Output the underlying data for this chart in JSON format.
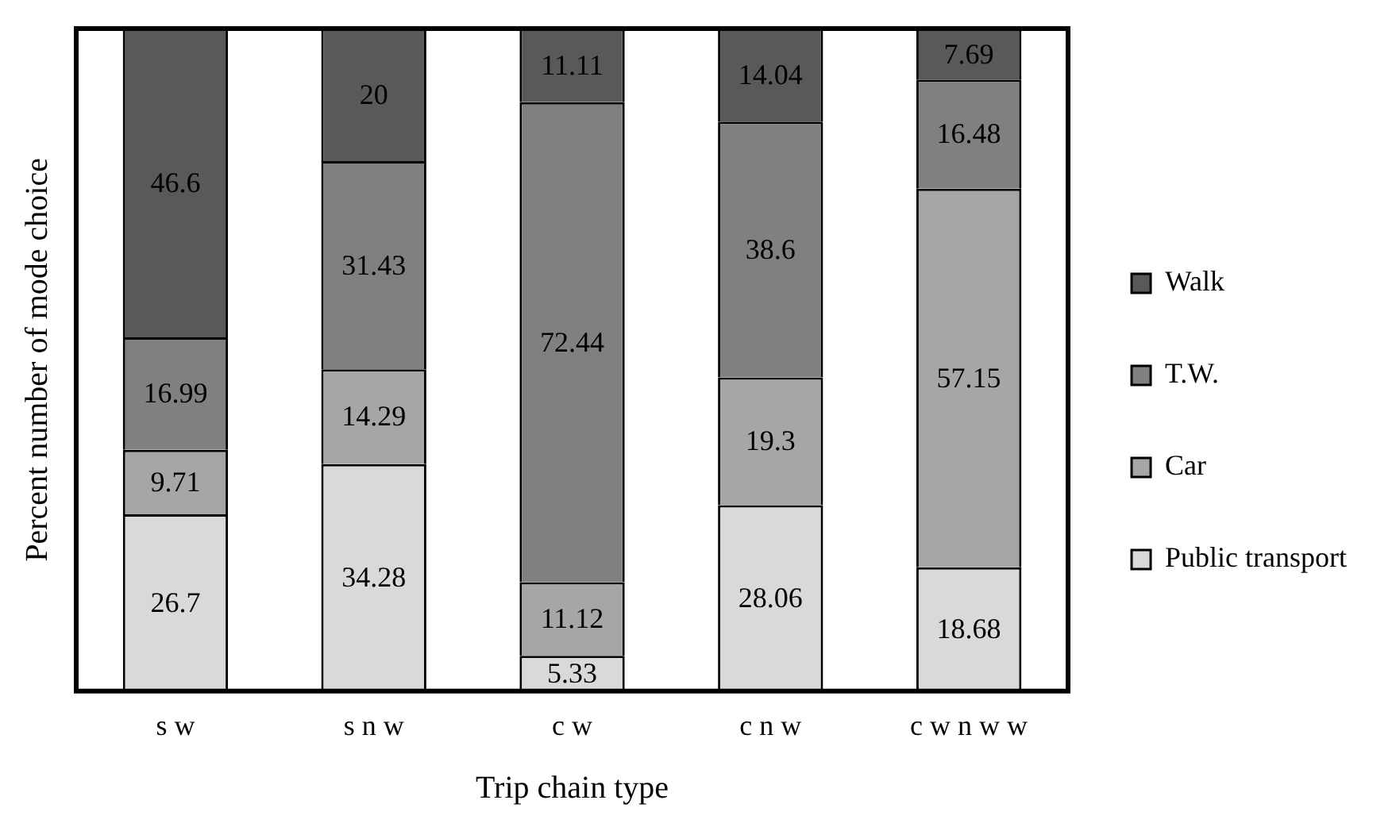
{
  "chart_data": {
    "type": "bar",
    "xlabel": "Trip chain type",
    "ylabel": "Percent number of mode choice",
    "categories": [
      "s w",
      "s n w",
      "c w",
      "c n w",
      "c w n w w"
    ],
    "series": [
      {
        "name": "Public transport",
        "color": "#d9d9d9",
        "values": [
          26.7,
          34.28,
          5.33,
          28.06,
          18.68
        ]
      },
      {
        "name": "Car",
        "color": "#a6a6a6",
        "values": [
          9.71,
          14.29,
          11.12,
          19.3,
          57.15
        ]
      },
      {
        "name": "T.W.",
        "color": "#808080",
        "values": [
          16.99,
          31.43,
          72.44,
          38.6,
          16.48
        ]
      },
      {
        "name": "Walk",
        "color": "#595959",
        "values": [
          46.6,
          20,
          11.11,
          14.04,
          7.69
        ]
      }
    ],
    "stacked": true,
    "ylim": [
      0,
      100
    ],
    "tick_labels": "x",
    "legend": "right",
    "data_labels": true
  }
}
